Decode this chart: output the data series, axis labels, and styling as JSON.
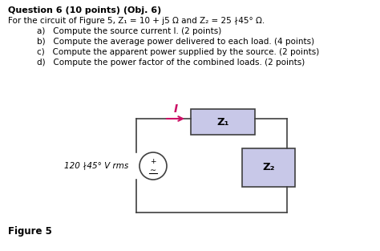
{
  "title": "Question 6 (10 points) (Obj. 6)",
  "line1": "For the circuit of Figure 5, Z₁ = 10 + j5 Ω and Z₂ = 25 ∤45° Ω.",
  "items": [
    "a)   Compute the source current I. (2 points)",
    "b)   Compute the average power delivered to each load. (4 points)",
    "c)   Compute the apparent power supplied by the source. (2 points)",
    "d)   Compute the power factor of the combined loads. (2 points)"
  ],
  "figure_label": "Figure 5",
  "voltage_label": "120 ∤45° V rms",
  "z1_label": "Z₁",
  "z2_label": "Z₂",
  "current_label": "I",
  "bg_color": "#ffffff",
  "text_color": "#000000",
  "circuit_color": "#404040",
  "z_box_color": "#c8c8e8",
  "arrow_color": "#cc1166",
  "current_color": "#cc1166",
  "title_fontsize": 8.0,
  "body_fontsize": 7.5,
  "circuit_lw": 1.2
}
